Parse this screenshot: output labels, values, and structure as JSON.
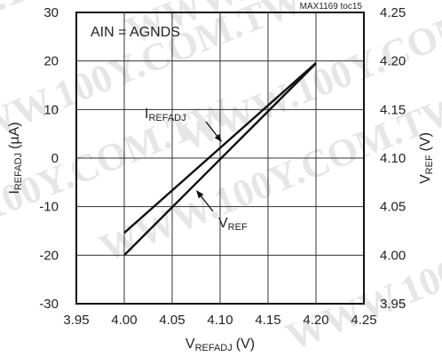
{
  "chart_data": {
    "type": "line",
    "source_tag": "MAX1169 toc15",
    "annotation": "AIN = AGNDS",
    "xlabel": {
      "main": "V",
      "sub": "REFADJ",
      "unit": "(V)"
    },
    "ylabel_left": {
      "main": "I",
      "sub": "REFADJ",
      "unit": "(µA)"
    },
    "ylabel_right": {
      "main": "V",
      "sub": "REF",
      "unit": "(V)"
    },
    "xlim": [
      3.95,
      4.25
    ],
    "ylim_left": [
      -30,
      30
    ],
    "ylim_right": [
      3.95,
      4.25
    ],
    "x_ticks": [
      "3.95",
      "4.00",
      "4.05",
      "4.10",
      "4.15",
      "4.20",
      "4.25"
    ],
    "y_left_ticks": [
      "30",
      "20",
      "10",
      "0",
      "-10",
      "-20",
      "-30"
    ],
    "y_right_ticks": [
      "4.25",
      "4.20",
      "4.15",
      "4.10",
      "4.05",
      "4.00",
      "3.95"
    ],
    "grid": true,
    "series": [
      {
        "name": "I",
        "name_sub": "REFADJ",
        "axis": "left",
        "x": [
          4.0,
          4.2
        ],
        "y": [
          -20,
          19.5
        ]
      },
      {
        "name": "V",
        "name_sub": "REF",
        "axis": "right",
        "x": [
          4.0,
          4.2
        ],
        "y": [
          4.023,
          4.198
        ]
      }
    ],
    "line_color": "#111111",
    "grid_color": "#333333"
  },
  "watermark": "WWW.100Y.COM.TW"
}
